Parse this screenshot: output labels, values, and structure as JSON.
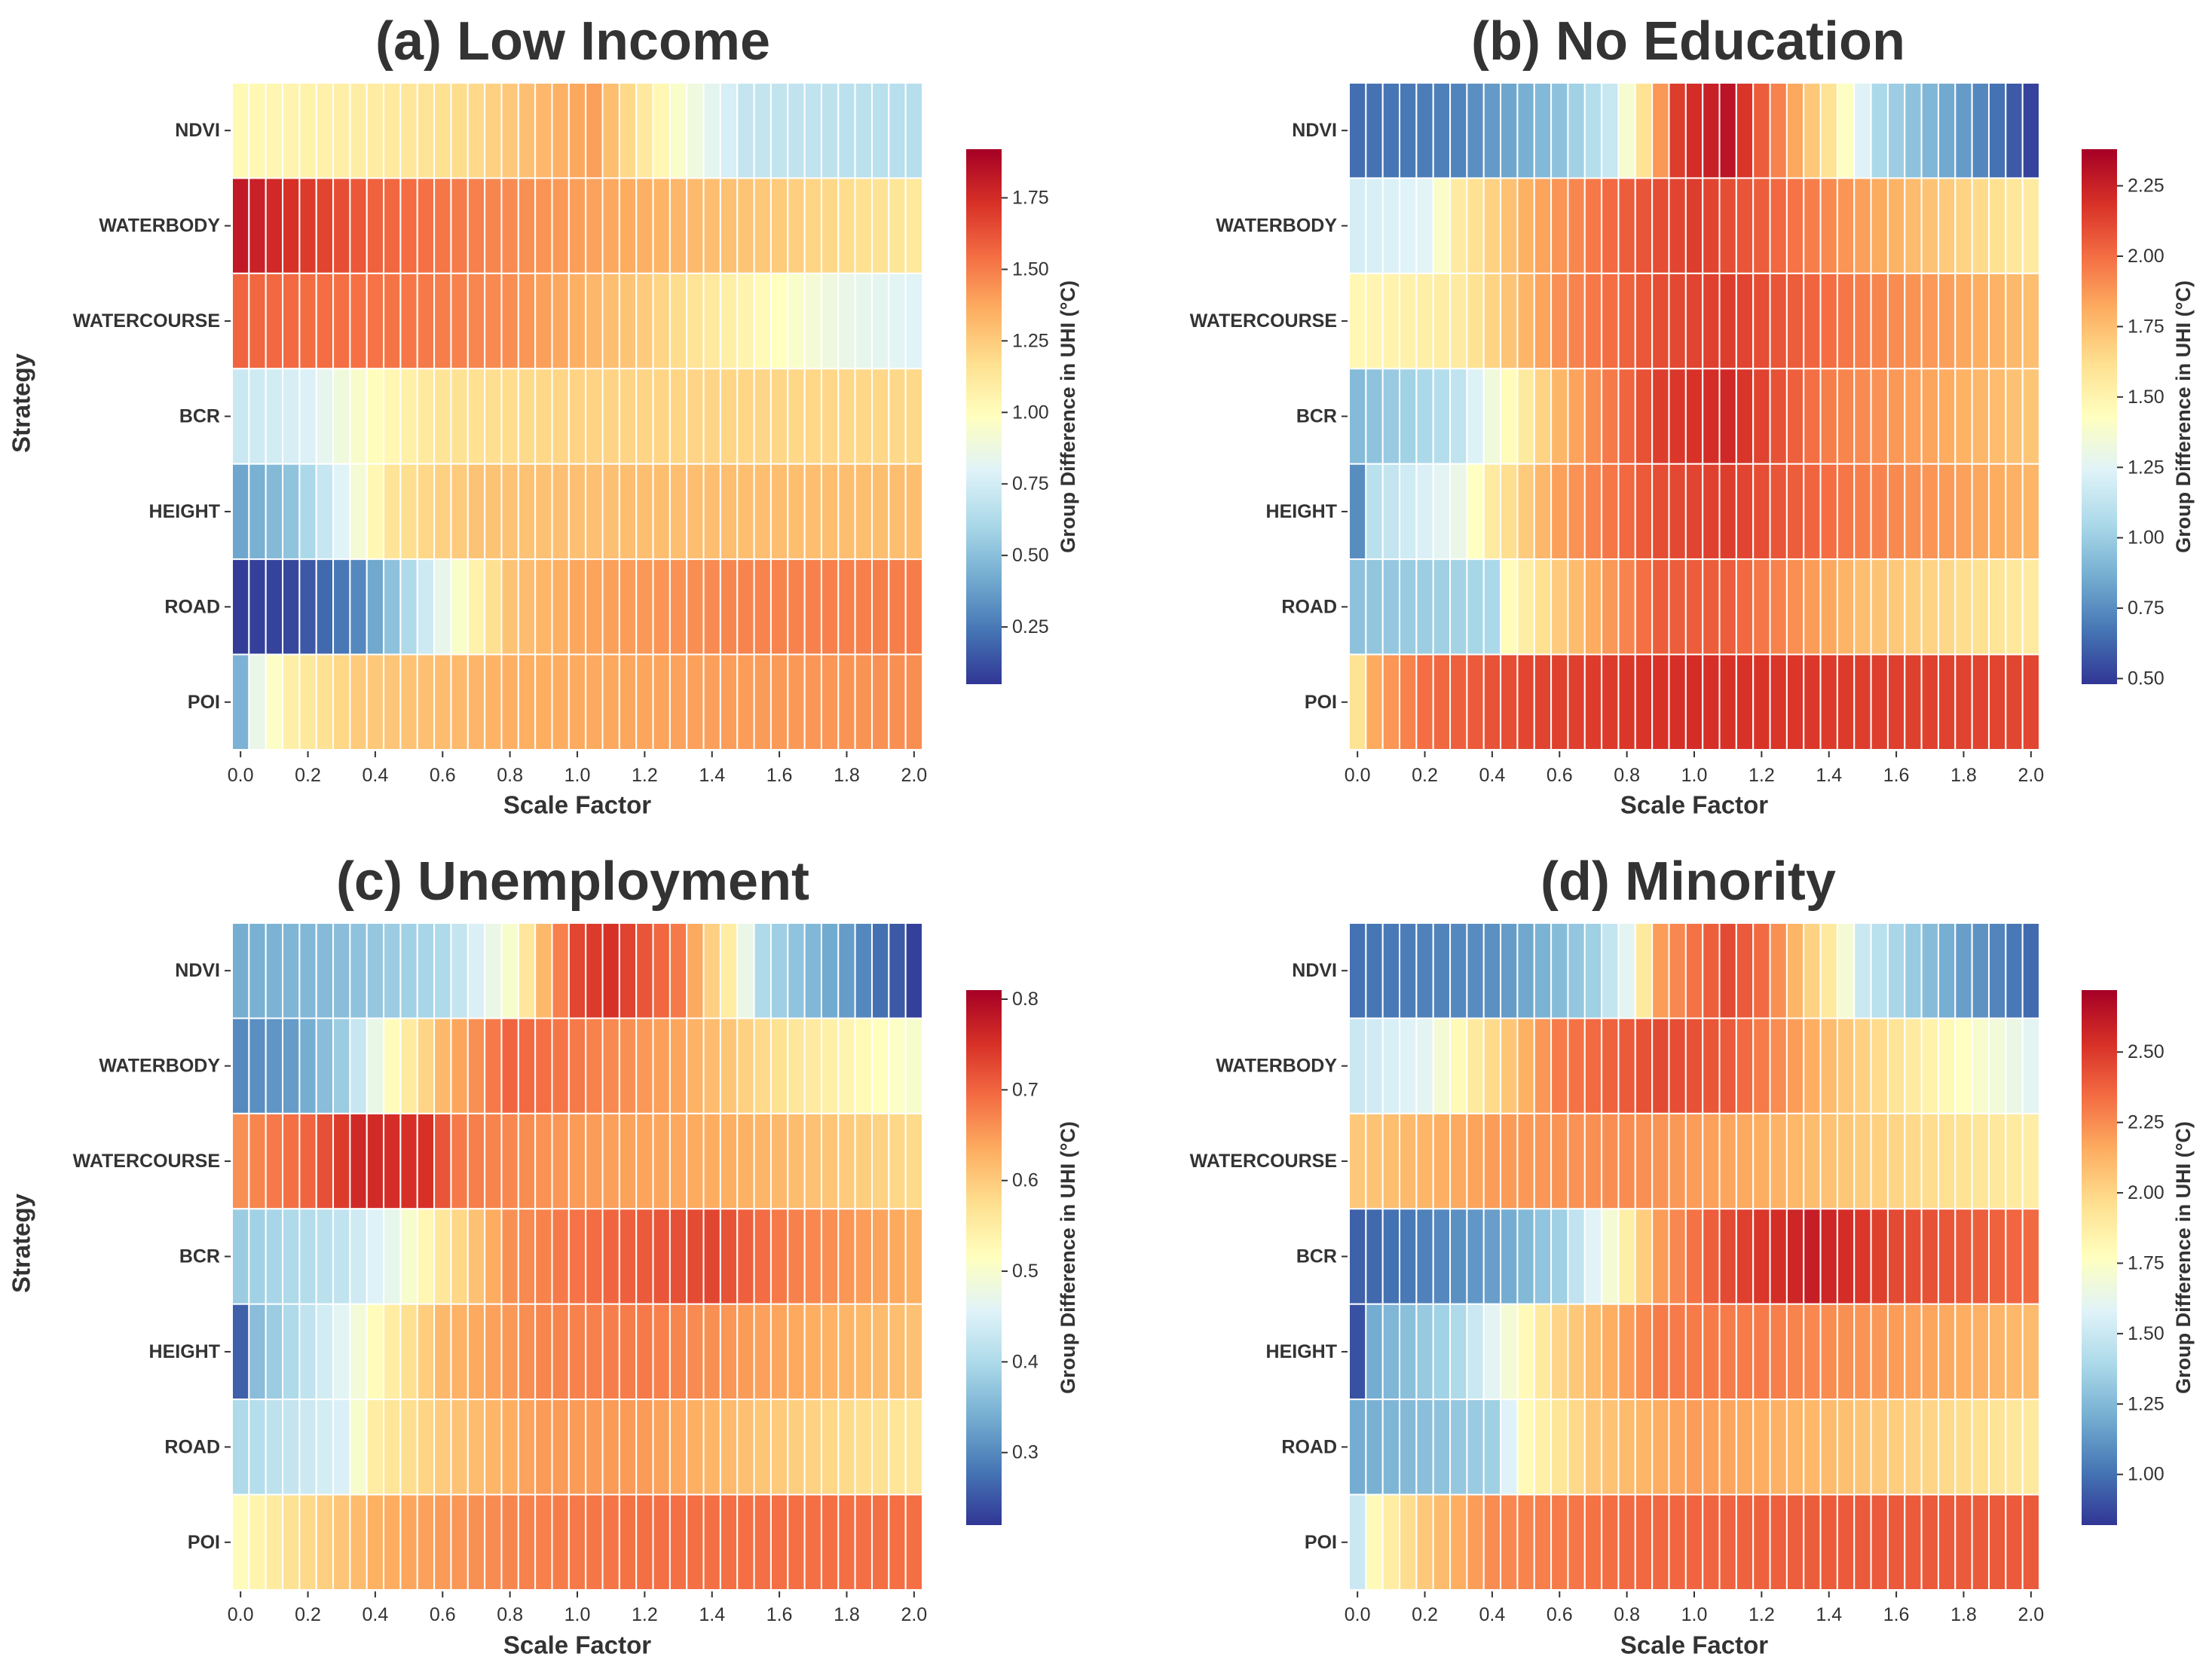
{
  "chart_data": [
    {
      "type": "heatmap",
      "title": "(a) Low Income",
      "xlabel": "Scale Factor",
      "ylabel": "Strategy",
      "colorbar_label": "Group Difference in UHI (°C)",
      "rows": [
        "NDVI",
        "WATERBODY",
        "WATERCOURSE",
        "BCR",
        "HEIGHT",
        "ROAD",
        "POI"
      ],
      "x_ticks": [
        "0.0",
        "0.2",
        "0.4",
        "0.6",
        "0.8",
        "1.0",
        "1.2",
        "1.4",
        "1.6",
        "1.8",
        "2.0"
      ],
      "x_range": [
        0,
        2
      ],
      "n_columns": 41,
      "vmin": 0.05,
      "vmax": 1.92,
      "colorbar_ticks": [
        "0.25",
        "0.50",
        "0.75",
        "1.00",
        "1.25",
        "1.50",
        "1.75"
      ],
      "colorscale": "RdYlBu_r",
      "profiles": {
        "NDVI": [
          [
            0,
            1.02
          ],
          [
            0.4,
            1.1
          ],
          [
            0.7,
            1.2
          ],
          [
            0.9,
            1.32
          ],
          [
            1.05,
            1.4
          ],
          [
            1.15,
            1.2
          ],
          [
            1.3,
            0.95
          ],
          [
            1.5,
            0.7
          ],
          [
            2.0,
            0.65
          ]
        ],
        "WATERBODY": [
          [
            0,
            1.82
          ],
          [
            0.2,
            1.7
          ],
          [
            0.4,
            1.58
          ],
          [
            0.8,
            1.46
          ],
          [
            1.2,
            1.35
          ],
          [
            1.6,
            1.25
          ],
          [
            2.0,
            1.12
          ]
        ],
        "WATERCOURSE": [
          [
            0,
            1.57
          ],
          [
            0.5,
            1.52
          ],
          [
            0.8,
            1.45
          ],
          [
            1.2,
            1.25
          ],
          [
            1.5,
            1.05
          ],
          [
            1.8,
            0.85
          ],
          [
            2.0,
            0.8
          ]
        ],
        "BCR": [
          [
            0,
            0.72
          ],
          [
            0.2,
            0.78
          ],
          [
            0.4,
            1.0
          ],
          [
            0.6,
            1.15
          ],
          [
            1.0,
            1.22
          ],
          [
            2.0,
            1.2
          ]
        ],
        "HEIGHT": [
          [
            0,
            0.4
          ],
          [
            0.15,
            0.52
          ],
          [
            0.3,
            0.8
          ],
          [
            0.45,
            1.15
          ],
          [
            0.7,
            1.28
          ],
          [
            1.2,
            1.3
          ],
          [
            2.0,
            1.3
          ]
        ],
        "ROAD": [
          [
            0,
            0.07
          ],
          [
            0.15,
            0.1
          ],
          [
            0.35,
            0.3
          ],
          [
            0.5,
            0.62
          ],
          [
            0.65,
            0.95
          ],
          [
            0.8,
            1.28
          ],
          [
            1.0,
            1.38
          ],
          [
            1.5,
            1.48
          ],
          [
            2.0,
            1.5
          ]
        ],
        "POI": [
          [
            0,
            0.45
          ],
          [
            0.05,
            0.85
          ],
          [
            0.15,
            1.08
          ],
          [
            0.35,
            1.25
          ],
          [
            0.8,
            1.35
          ],
          [
            2.0,
            1.45
          ]
        ]
      }
    },
    {
      "type": "heatmap",
      "title": "(b) No Education",
      "xlabel": "Scale Factor",
      "ylabel": "",
      "colorbar_label": "Group Difference in UHI (°C)",
      "rows": [
        "NDVI",
        "WATERBODY",
        "WATERCOURSE",
        "BCR",
        "HEIGHT",
        "ROAD",
        "POI"
      ],
      "x_ticks": [
        "0.0",
        "0.2",
        "0.4",
        "0.6",
        "0.8",
        "1.0",
        "1.2",
        "1.4",
        "1.6",
        "1.8",
        "2.0"
      ],
      "x_range": [
        0,
        2
      ],
      "n_columns": 41,
      "vmin": 0.48,
      "vmax": 2.38,
      "colorbar_ticks": [
        "0.50",
        "0.75",
        "1.00",
        "1.25",
        "1.50",
        "1.75",
        "2.00",
        "2.25"
      ],
      "colorscale": "RdYlBu_r",
      "profiles": {
        "NDVI": [
          [
            0,
            0.65
          ],
          [
            0.3,
            0.72
          ],
          [
            0.6,
            0.95
          ],
          [
            0.75,
            1.15
          ],
          [
            0.85,
            1.6
          ],
          [
            0.95,
            2.15
          ],
          [
            1.1,
            2.3
          ],
          [
            1.2,
            2.05
          ],
          [
            1.4,
            1.6
          ],
          [
            1.55,
            1.05
          ],
          [
            1.8,
            0.8
          ],
          [
            2.0,
            0.52
          ]
        ],
        "WATERBODY": [
          [
            0,
            1.2
          ],
          [
            0.2,
            1.25
          ],
          [
            0.3,
            1.55
          ],
          [
            0.5,
            1.8
          ],
          [
            0.8,
            2.05
          ],
          [
            1.0,
            2.15
          ],
          [
            1.2,
            2.05
          ],
          [
            1.5,
            1.85
          ],
          [
            2.0,
            1.55
          ]
        ],
        "WATERCOURSE": [
          [
            0,
            1.48
          ],
          [
            0.3,
            1.55
          ],
          [
            0.6,
            1.9
          ],
          [
            0.9,
            2.1
          ],
          [
            1.1,
            2.15
          ],
          [
            1.5,
            1.95
          ],
          [
            2.0,
            1.75
          ]
        ],
        "BCR": [
          [
            0,
            0.92
          ],
          [
            0.3,
            1.12
          ],
          [
            0.45,
            1.45
          ],
          [
            0.6,
            1.78
          ],
          [
            0.9,
            2.15
          ],
          [
            1.1,
            2.22
          ],
          [
            1.4,
            1.95
          ],
          [
            2.0,
            1.72
          ]
        ],
        "HEIGHT": [
          [
            0,
            0.75
          ],
          [
            0.05,
            1.1
          ],
          [
            0.3,
            1.3
          ],
          [
            0.4,
            1.55
          ],
          [
            0.6,
            1.85
          ],
          [
            0.9,
            2.1
          ],
          [
            1.1,
            2.15
          ],
          [
            1.5,
            1.95
          ],
          [
            2.0,
            1.78
          ]
        ],
        "ROAD": [
          [
            0,
            0.95
          ],
          [
            0.4,
            1.05
          ],
          [
            0.45,
            1.45
          ],
          [
            0.6,
            1.7
          ],
          [
            0.9,
            2.05
          ],
          [
            1.1,
            2.05
          ],
          [
            1.5,
            1.75
          ],
          [
            2.0,
            1.55
          ]
        ],
        "POI": [
          [
            0,
            1.6
          ],
          [
            0.05,
            1.82
          ],
          [
            0.2,
            2.0
          ],
          [
            0.5,
            2.12
          ],
          [
            1.0,
            2.2
          ],
          [
            1.5,
            2.15
          ],
          [
            2.0,
            2.12
          ]
        ]
      }
    },
    {
      "type": "heatmap",
      "title": "(c) Unemployment",
      "xlabel": "Scale Factor",
      "ylabel": "Strategy",
      "colorbar_label": "Group Difference in UHI (°C)",
      "rows": [
        "NDVI",
        "WATERBODY",
        "WATERCOURSE",
        "BCR",
        "HEIGHT",
        "ROAD",
        "POI"
      ],
      "x_ticks": [
        "0.0",
        "0.2",
        "0.4",
        "0.6",
        "0.8",
        "1.0",
        "1.2",
        "1.4",
        "1.6",
        "1.8",
        "2.0"
      ],
      "x_range": [
        0,
        2
      ],
      "n_columns": 41,
      "vmin": 0.22,
      "vmax": 0.81,
      "colorbar_ticks": [
        "0.3",
        "0.4",
        "0.5",
        "0.6",
        "0.7",
        "0.8"
      ],
      "colorscale": "RdYlBu_r",
      "profiles": {
        "NDVI": [
          [
            0,
            0.34
          ],
          [
            0.3,
            0.36
          ],
          [
            0.6,
            0.4
          ],
          [
            0.8,
            0.5
          ],
          [
            0.9,
            0.62
          ],
          [
            1.0,
            0.73
          ],
          [
            1.1,
            0.75
          ],
          [
            1.3,
            0.68
          ],
          [
            1.45,
            0.55
          ],
          [
            1.55,
            0.4
          ],
          [
            1.8,
            0.32
          ],
          [
            2.0,
            0.23
          ]
        ],
        "WATERBODY": [
          [
            0,
            0.3
          ],
          [
            0.15,
            0.32
          ],
          [
            0.3,
            0.38
          ],
          [
            0.45,
            0.52
          ],
          [
            0.6,
            0.62
          ],
          [
            0.8,
            0.7
          ],
          [
            1.0,
            0.68
          ],
          [
            1.3,
            0.64
          ],
          [
            1.6,
            0.57
          ],
          [
            2.0,
            0.5
          ]
        ],
        "WATERCOURSE": [
          [
            0,
            0.66
          ],
          [
            0.2,
            0.7
          ],
          [
            0.35,
            0.76
          ],
          [
            0.55,
            0.75
          ],
          [
            0.65,
            0.68
          ],
          [
            1.0,
            0.65
          ],
          [
            1.5,
            0.63
          ],
          [
            2.0,
            0.58
          ]
        ],
        "BCR": [
          [
            0,
            0.38
          ],
          [
            0.3,
            0.42
          ],
          [
            0.45,
            0.47
          ],
          [
            0.6,
            0.56
          ],
          [
            0.8,
            0.66
          ],
          [
            1.1,
            0.7
          ],
          [
            1.4,
            0.73
          ],
          [
            1.6,
            0.68
          ],
          [
            2.0,
            0.63
          ]
        ],
        "HEIGHT": [
          [
            0,
            0.26
          ],
          [
            0.05,
            0.36
          ],
          [
            0.3,
            0.46
          ],
          [
            0.45,
            0.55
          ],
          [
            0.6,
            0.62
          ],
          [
            0.9,
            0.67
          ],
          [
            1.2,
            0.68
          ],
          [
            1.6,
            0.64
          ],
          [
            2.0,
            0.61
          ]
        ],
        "ROAD": [
          [
            0,
            0.4
          ],
          [
            0.3,
            0.45
          ],
          [
            0.4,
            0.55
          ],
          [
            0.6,
            0.6
          ],
          [
            0.9,
            0.65
          ],
          [
            1.2,
            0.65
          ],
          [
            1.6,
            0.6
          ],
          [
            2.0,
            0.56
          ]
        ],
        "POI": [
          [
            0,
            0.52
          ],
          [
            0.15,
            0.57
          ],
          [
            0.4,
            0.63
          ],
          [
            0.8,
            0.67
          ],
          [
            1.2,
            0.69
          ],
          [
            1.6,
            0.69
          ],
          [
            2.0,
            0.69
          ]
        ]
      }
    },
    {
      "type": "heatmap",
      "title": "(d) Minority",
      "xlabel": "Scale Factor",
      "ylabel": "",
      "colorbar_label": "Group Difference in UHI (°C)",
      "rows": [
        "NDVI",
        "WATERBODY",
        "WATERCOURSE",
        "BCR",
        "HEIGHT",
        "ROAD",
        "POI"
      ],
      "x_ticks": [
        "0.0",
        "0.2",
        "0.4",
        "0.6",
        "0.8",
        "1.0",
        "1.2",
        "1.4",
        "1.6",
        "1.8",
        "2.0"
      ],
      "x_range": [
        0,
        2
      ],
      "n_columns": 41,
      "vmin": 0.82,
      "vmax": 2.72,
      "colorbar_ticks": [
        "1.00",
        "1.25",
        "1.50",
        "1.75",
        "2.00",
        "2.25",
        "2.50"
      ],
      "colorscale": "RdYlBu_r",
      "profiles": {
        "NDVI": [
          [
            0,
            1.0
          ],
          [
            0.4,
            1.1
          ],
          [
            0.7,
            1.35
          ],
          [
            0.8,
            1.6
          ],
          [
            0.9,
            2.2
          ],
          [
            1.1,
            2.45
          ],
          [
            1.2,
            2.35
          ],
          [
            1.4,
            1.9
          ],
          [
            1.5,
            1.5
          ],
          [
            1.8,
            1.15
          ],
          [
            2.0,
            0.98
          ]
        ],
        "WATERBODY": [
          [
            0,
            1.5
          ],
          [
            0.2,
            1.6
          ],
          [
            0.35,
            1.9
          ],
          [
            0.6,
            2.3
          ],
          [
            0.9,
            2.45
          ],
          [
            1.1,
            2.4
          ],
          [
            1.4,
            2.1
          ],
          [
            1.7,
            1.85
          ],
          [
            2.0,
            1.6
          ]
        ],
        "WATERCOURSE": [
          [
            0,
            2.05
          ],
          [
            0.4,
            2.2
          ],
          [
            0.8,
            2.25
          ],
          [
            1.2,
            2.15
          ],
          [
            1.6,
            2.0
          ],
          [
            2.0,
            1.88
          ]
        ],
        "BCR": [
          [
            0,
            0.95
          ],
          [
            0.4,
            1.15
          ],
          [
            0.6,
            1.35
          ],
          [
            0.75,
            1.7
          ],
          [
            0.9,
            2.2
          ],
          [
            1.1,
            2.45
          ],
          [
            1.35,
            2.6
          ],
          [
            1.6,
            2.45
          ],
          [
            2.0,
            2.35
          ]
        ],
        "HEIGHT": [
          [
            0,
            0.9
          ],
          [
            0.05,
            1.2
          ],
          [
            0.3,
            1.4
          ],
          [
            0.45,
            1.7
          ],
          [
            0.6,
            2.0
          ],
          [
            0.9,
            2.3
          ],
          [
            1.2,
            2.3
          ],
          [
            1.6,
            2.2
          ],
          [
            2.0,
            2.1
          ]
        ],
        "ROAD": [
          [
            0,
            1.2
          ],
          [
            0.4,
            1.35
          ],
          [
            0.5,
            1.8
          ],
          [
            0.7,
            2.05
          ],
          [
            1.0,
            2.2
          ],
          [
            1.4,
            2.1
          ],
          [
            1.7,
            2.0
          ],
          [
            2.0,
            1.9
          ]
        ],
        "POI": [
          [
            0,
            1.5
          ],
          [
            0.05,
            1.8
          ],
          [
            0.2,
            2.05
          ],
          [
            0.4,
            2.25
          ],
          [
            0.8,
            2.35
          ],
          [
            1.5,
            2.4
          ],
          [
            2.0,
            2.4
          ]
        ]
      }
    }
  ]
}
